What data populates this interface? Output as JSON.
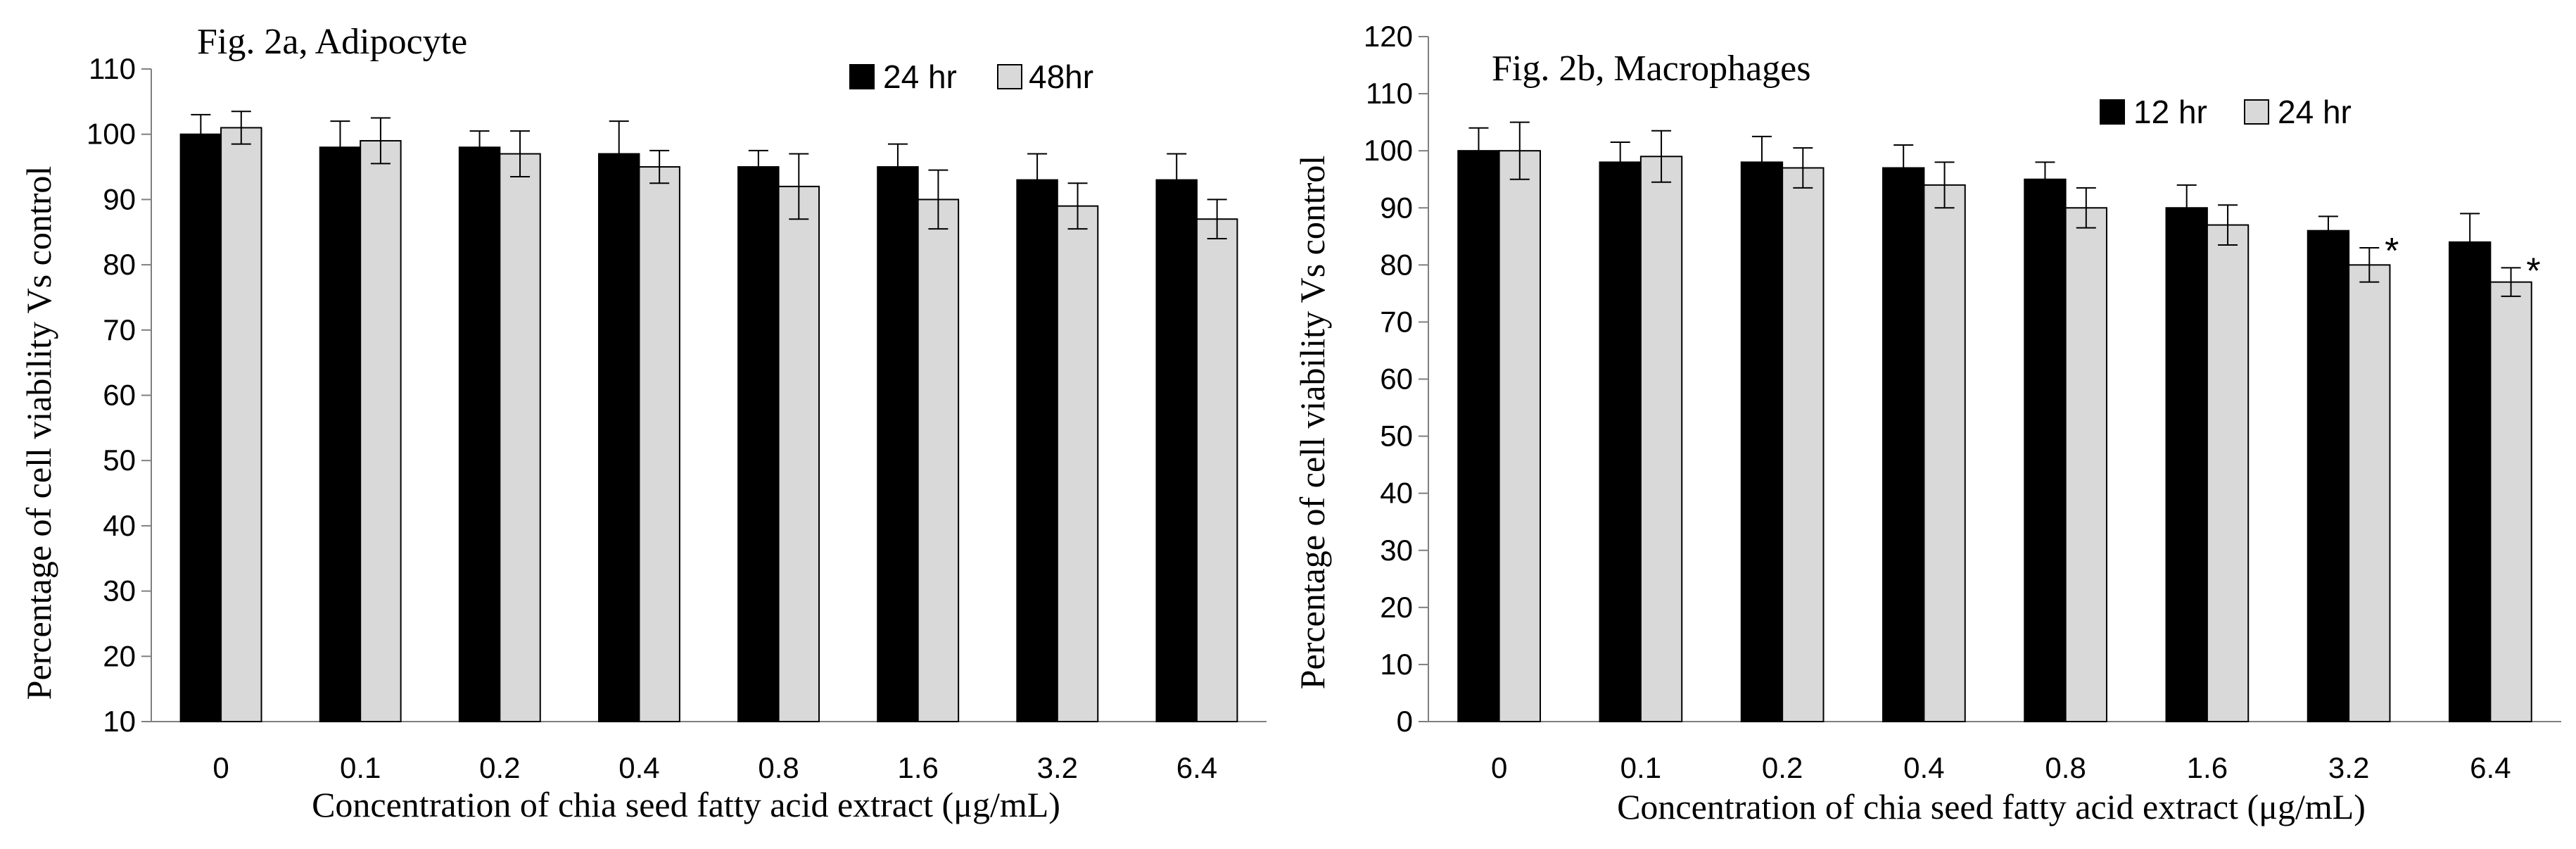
{
  "colors": {
    "series_a": "#000000",
    "series_b": "#d9d9d9",
    "axis": "#7f7f7f"
  },
  "chart_data": [
    {
      "type": "bar",
      "title": "Fig. 2a, Adipocyte",
      "xlabel": "Concentration of chia seed fatty acid extract (μg/mL)",
      "ylabel": "Percentage of cell viability Vs control",
      "ylim": [
        10,
        110
      ],
      "yticks": [
        "10",
        "20",
        "30",
        "40",
        "50",
        "60",
        "70",
        "80",
        "90",
        "100",
        "110"
      ],
      "categories": [
        "0",
        "0.1",
        "0.2",
        "0.4",
        "0.8",
        "1.6",
        "3.2",
        "6.4"
      ],
      "legend_position": "top-right",
      "series": [
        {
          "name": "24 hr",
          "values": [
            100,
            98,
            98,
            97,
            95,
            95,
            93,
            93
          ],
          "errors": [
            3,
            4,
            2.5,
            5,
            2.5,
            3.5,
            4,
            4
          ]
        },
        {
          "name": "48hr",
          "values": [
            101,
            99,
            97,
            95,
            92,
            90,
            89,
            87
          ],
          "errors": [
            2.5,
            3.5,
            3.5,
            2.5,
            5,
            4.5,
            3.5,
            3
          ]
        }
      ],
      "annotations": []
    },
    {
      "type": "bar",
      "title": "Fig. 2b, Macrophages",
      "xlabel": "Concentration of chia seed fatty acid extract (μg/mL)",
      "ylabel": "Percentage of cell viability Vs control",
      "ylim": [
        0,
        120
      ],
      "yticks": [
        "0",
        "10",
        "20",
        "30",
        "40",
        "50",
        "60",
        "70",
        "80",
        "90",
        "100",
        "110",
        "120"
      ],
      "categories": [
        "0",
        "0.1",
        "0.2",
        "0.4",
        "0.8",
        "1.6",
        "3.2",
        "6.4"
      ],
      "legend_position": "top-right",
      "series": [
        {
          "name": "12 hr",
          "values": [
            100,
            98,
            98,
            97,
            95,
            90,
            86,
            84
          ],
          "errors": [
            4,
            3.5,
            4.5,
            4,
            3,
            4,
            2.5,
            5
          ]
        },
        {
          "name": "24 hr",
          "values": [
            100,
            99,
            97,
            94,
            90,
            87,
            80,
            77
          ],
          "errors": [
            5,
            4.5,
            3.5,
            4,
            3.5,
            3.5,
            3,
            2.5
          ]
        }
      ],
      "annotations": [
        {
          "text": "*",
          "category": "3.2",
          "series": 1
        },
        {
          "text": "*",
          "category": "6.4",
          "series": 1
        }
      ]
    }
  ]
}
